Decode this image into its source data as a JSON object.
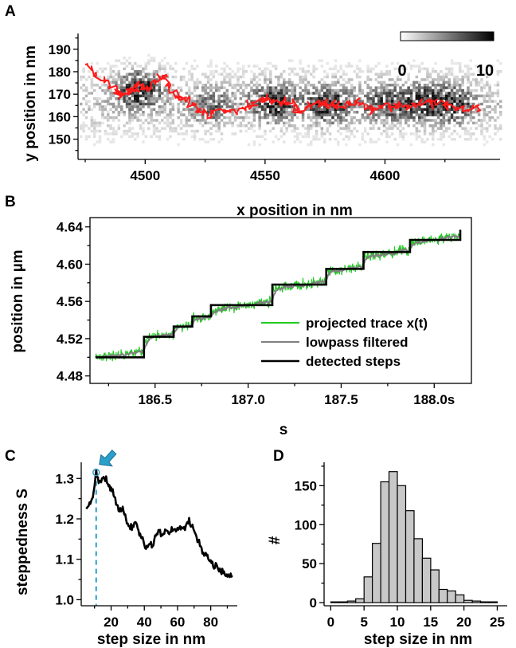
{
  "panels": {
    "A": "A",
    "B": "B",
    "C": "C",
    "D": "D"
  },
  "chart_data": [
    {
      "panel": "A",
      "type": "scatter",
      "xlabel": "x position in nm",
      "ylabel": "y position in nm",
      "xlim": [
        4472,
        4648
      ],
      "ylim": [
        141,
        197
      ],
      "xticks": [
        4500,
        4550,
        4600
      ],
      "yticks": [
        150,
        160,
        170,
        180,
        190
      ],
      "colorbar": {
        "min": 0,
        "max": 10,
        "labels": [
          "0",
          "10"
        ],
        "placement": "top-right"
      },
      "heatmap_clusters": [
        {
          "x": 4497,
          "y": 173,
          "intensity": 1.0
        },
        {
          "x": 4527,
          "y": 165,
          "intensity": 0.5
        },
        {
          "x": 4553,
          "y": 167,
          "intensity": 0.9
        },
        {
          "x": 4576,
          "y": 166,
          "intensity": 0.9
        },
        {
          "x": 4599,
          "y": 166,
          "intensity": 0.6
        },
        {
          "x": 4614,
          "y": 167,
          "intensity": 0.8
        },
        {
          "x": 4628,
          "y": 166,
          "intensity": 0.8
        }
      ],
      "trace": {
        "color": "#ff1a1a",
        "points": [
          [
            4475,
            184
          ],
          [
            4480,
            177
          ],
          [
            4486,
            174
          ],
          [
            4490,
            169
          ],
          [
            4494,
            172
          ],
          [
            4497,
            174
          ],
          [
            4500,
            172
          ],
          [
            4504,
            175
          ],
          [
            4508,
            178
          ],
          [
            4511,
            171
          ],
          [
            4514,
            169
          ],
          [
            4518,
            167
          ],
          [
            4522,
            163
          ],
          [
            4526,
            161
          ],
          [
            4532,
            163
          ],
          [
            4538,
            162
          ],
          [
            4543,
            165
          ],
          [
            4548,
            167
          ],
          [
            4552,
            168
          ],
          [
            4556,
            166
          ],
          [
            4560,
            166
          ],
          [
            4565,
            163
          ],
          [
            4570,
            165
          ],
          [
            4574,
            166
          ],
          [
            4578,
            165
          ],
          [
            4582,
            164
          ],
          [
            4586,
            166
          ],
          [
            4590,
            166
          ],
          [
            4595,
            163
          ],
          [
            4600,
            165
          ],
          [
            4605,
            164
          ],
          [
            4610,
            165
          ],
          [
            4615,
            166
          ],
          [
            4620,
            166
          ],
          [
            4625,
            166
          ],
          [
            4630,
            164
          ],
          [
            4635,
            163
          ],
          [
            4640,
            163
          ]
        ]
      }
    },
    {
      "panel": "B",
      "type": "line",
      "xlabel": "s",
      "ylabel": "position in µm",
      "xlim": [
        186.15,
        188.2
      ],
      "ylim": [
        4.472,
        4.65
      ],
      "xticks": [
        186.5,
        187.0,
        187.5,
        188.0
      ],
      "xtick_labels": [
        "186.5",
        "187.0",
        "187.5",
        "188.0s"
      ],
      "yticks": [
        4.48,
        4.52,
        4.56,
        4.6,
        4.64
      ],
      "ytick_labels": [
        "4.48",
        "4.52",
        "4.56",
        "4.60",
        "4.64"
      ],
      "legend": {
        "placement": "bottom-right",
        "entries": [
          {
            "label": "projected trace x(t)",
            "color": "#22cc22"
          },
          {
            "label": "lowpass filtered",
            "color": "#808080"
          },
          {
            "label": "detected steps",
            "color": "#000000"
          }
        ]
      },
      "steps": {
        "times": [
          186.18,
          186.44,
          186.6,
          186.7,
          186.8,
          187.13,
          187.42,
          187.62,
          187.87,
          188.14
        ],
        "levels": [
          4.5,
          4.522,
          4.533,
          4.544,
          4.556,
          4.578,
          4.595,
          4.613,
          4.626,
          4.637
        ]
      },
      "trace_noise_um": 0.006
    },
    {
      "panel": "C",
      "type": "line",
      "xlabel": "step size in nm",
      "ylabel": "steppedness S",
      "xlim": [
        2,
        96
      ],
      "ylim": [
        0.985,
        1.34
      ],
      "xticks": [
        20,
        40,
        60,
        80
      ],
      "yticks": [
        1.0,
        1.1,
        1.2,
        1.3
      ],
      "ytick_labels": [
        "1.0",
        "1.1",
        "1.2",
        "1.3"
      ],
      "marker": {
        "x": 11,
        "color": "#2a9fc9",
        "style": "dashed line and arrow"
      },
      "series": {
        "x": [
          5,
          7,
          9,
          11,
          13,
          15,
          17,
          19,
          21,
          23,
          25,
          27,
          29,
          31,
          33,
          35,
          37,
          39,
          41,
          43,
          45,
          47,
          49,
          51,
          53,
          55,
          57,
          59,
          61,
          63,
          65,
          67,
          69,
          71,
          73,
          75,
          77,
          79,
          81,
          83,
          85,
          87,
          89,
          91,
          93
        ],
        "values": [
          1.225,
          1.235,
          1.255,
          1.315,
          1.29,
          1.3,
          1.295,
          1.28,
          1.27,
          1.24,
          1.215,
          1.23,
          1.2,
          1.175,
          1.18,
          1.19,
          1.16,
          1.15,
          1.125,
          1.14,
          1.135,
          1.165,
          1.17,
          1.16,
          1.175,
          1.165,
          1.175,
          1.17,
          1.18,
          1.175,
          1.185,
          1.195,
          1.185,
          1.16,
          1.14,
          1.12,
          1.11,
          1.1,
          1.09,
          1.085,
          1.075,
          1.07,
          1.065,
          1.06,
          1.06
        ]
      }
    },
    {
      "panel": "D",
      "type": "bar",
      "xlabel": "step size in nm",
      "ylabel": "#",
      "xlim": [
        -1,
        26.5
      ],
      "ylim": [
        -4,
        180
      ],
      "xticks": [
        0,
        5,
        10,
        15,
        20,
        25
      ],
      "yticks": [
        0,
        50,
        100,
        150
      ],
      "bin_width": 1.25,
      "bin_starts": [
        0,
        1.25,
        2.5,
        3.75,
        5,
        6.25,
        7.5,
        8.75,
        10,
        11.25,
        12.5,
        13.75,
        15,
        16.25,
        17.5,
        18.75,
        20,
        21.25,
        22.5,
        23.75
      ],
      "values": [
        1,
        1,
        2,
        5,
        33,
        76,
        155,
        168,
        150,
        118,
        82,
        57,
        42,
        17,
        15,
        10,
        3,
        2,
        1,
        0
      ],
      "bar_color": "#c8c8c8"
    }
  ]
}
